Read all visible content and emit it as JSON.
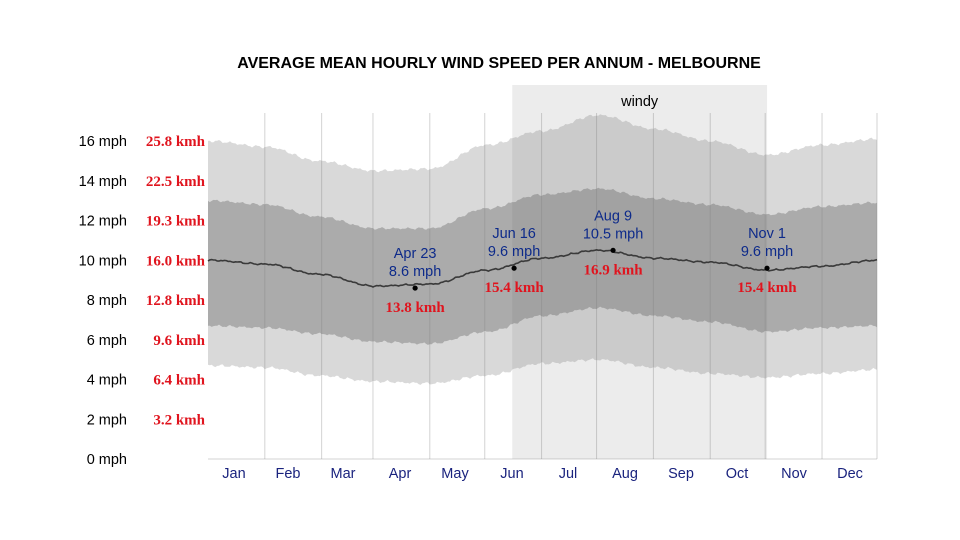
{
  "chart_data": {
    "type": "area",
    "title": "AVERAGE MEAN HOURLY WIND SPEED PER ANNUM - MELBOURNE",
    "ylim": [
      0,
      16
    ],
    "xlim": [
      0,
      365
    ],
    "grid": true,
    "y_ticks": [
      {
        "value": 0,
        "label": "0 mph",
        "kmh": ""
      },
      {
        "value": 2,
        "label": "2 mph",
        "kmh": "3.2 kmh"
      },
      {
        "value": 4,
        "label": "4 mph",
        "kmh": "6.4 kmh"
      },
      {
        "value": 6,
        "label": "6 mph",
        "kmh": "9.6 kmh"
      },
      {
        "value": 8,
        "label": "8 mph",
        "kmh": "12.8 kmh"
      },
      {
        "value": 10,
        "label": "10 mph",
        "kmh": "16.0 kmh"
      },
      {
        "value": 12,
        "label": "12 mph",
        "kmh": "19.3 kmh"
      },
      {
        "value": 14,
        "label": "14 mph",
        "kmh": "22.5 kmh"
      },
      {
        "value": 16,
        "label": "16 mph",
        "kmh": "25.8 kmh"
      }
    ],
    "months": [
      "Jan",
      "Feb",
      "Mar",
      "Apr",
      "May",
      "Jun",
      "Jul",
      "Aug",
      "Sep",
      "Oct",
      "Nov",
      "Dec"
    ],
    "highlight": {
      "label": "windy",
      "start_day": 166,
      "end_day": 305
    },
    "x": [
      1,
      32,
      60,
      91,
      121,
      152,
      182,
      213,
      244,
      274,
      305,
      335,
      365
    ],
    "mean": [
      10.0,
      9.8,
      9.3,
      8.7,
      8.8,
      9.5,
      10.1,
      10.5,
      10.1,
      9.9,
      9.5,
      9.7,
      10.0
    ],
    "p25": [
      6.7,
      6.6,
      6.3,
      5.9,
      5.8,
      6.4,
      7.2,
      7.6,
      7.2,
      6.9,
      6.4,
      6.6,
      6.7
    ],
    "p75": [
      13.0,
      12.8,
      12.2,
      11.6,
      11.6,
      12.6,
      13.3,
      13.6,
      13.1,
      12.8,
      12.3,
      12.7,
      12.9
    ],
    "p10": [
      4.7,
      4.6,
      4.2,
      3.9,
      3.8,
      4.2,
      4.8,
      5.0,
      4.6,
      4.3,
      4.1,
      4.3,
      4.5
    ],
    "p90": [
      16.0,
      15.7,
      15.0,
      14.5,
      14.6,
      15.8,
      16.5,
      17.3,
      16.6,
      16.0,
      15.3,
      15.8,
      16.1
    ],
    "annotations": [
      {
        "day": 113,
        "value": 8.6,
        "date": "Apr 23",
        "mph": "8.6 mph",
        "kmh": "13.8 kmh"
      },
      {
        "day": 167,
        "value": 9.6,
        "date": "Jun 16",
        "mph": "9.6 mph",
        "kmh": "15.4 kmh"
      },
      {
        "day": 221,
        "value": 10.5,
        "date": "Aug 9",
        "mph": "10.5 mph",
        "kmh": "16.9 kmh"
      },
      {
        "day": 305,
        "value": 9.6,
        "date": "Nov 1",
        "mph": "9.6 mph",
        "kmh": "15.4 kmh"
      }
    ]
  }
}
